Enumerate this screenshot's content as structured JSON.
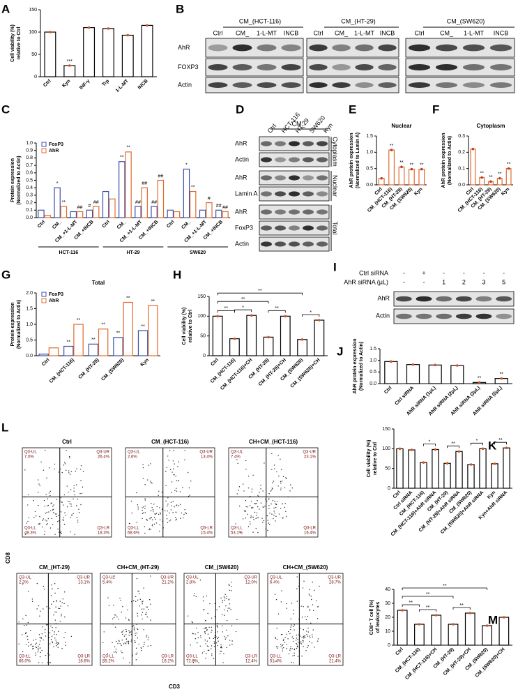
{
  "chart_data": [
    {
      "panel": "A",
      "type": "bar",
      "y_label": [
        "Cell viability (%)",
        "relative to Ctrl"
      ],
      "categories": [
        "Ctrl",
        "Kyn",
        "INF-γ",
        "Trp",
        "1-L-MT",
        "INCB"
      ],
      "values": [
        100,
        25,
        110,
        108,
        93,
        115
      ],
      "color": "#000000",
      "point_color": "#d9531e",
      "annotations": [
        null,
        "***",
        null,
        null,
        null,
        null
      ],
      "ylim": [
        0,
        150
      ],
      "yticks": [
        0,
        50,
        100,
        150
      ]
    },
    {
      "panel": "C",
      "type": "bar",
      "y_label": [
        "Protein expression",
        "(Normalized to Actin)"
      ],
      "categories": [
        "Ctrl",
        "CM_",
        "CM_+1-L-MT",
        "CM_+INCB",
        "Ctrl",
        "CM_",
        "CM_+1-L-MT",
        "CM_+INCB",
        "Ctrl",
        "CM_",
        "CM_+1-L-MT",
        "CM_+INCB"
      ],
      "groups": [
        "HCT-116",
        "HT-29",
        "SW620"
      ],
      "series": [
        {
          "name": "FoxP3",
          "color": "#3b4fa8",
          "values": [
            0.1,
            0.4,
            0.08,
            0.1,
            0.35,
            0.75,
            0.15,
            0.15,
            0.1,
            0.65,
            0.1,
            0.1
          ],
          "annotations": [
            null,
            "*",
            null,
            "#",
            null,
            "**",
            "##",
            "##",
            null,
            "*",
            null,
            "##"
          ]
        },
        {
          "name": "AhR",
          "color": "#e06a2c",
          "values": [
            0.03,
            0.15,
            0.08,
            0.15,
            0.25,
            0.88,
            0.4,
            0.5,
            0.08,
            0.35,
            0.2,
            0.08
          ],
          "annotations": [
            null,
            "**",
            "##",
            "##",
            null,
            "**",
            "##",
            "##",
            null,
            "**",
            "#",
            "##"
          ]
        }
      ],
      "ylim": [
        0,
        1.0
      ],
      "yticks": [
        {
          "value": 0,
          "label": "0.0"
        },
        0.1,
        0.2,
        0.3,
        0.4,
        0.5,
        0.6,
        0.7,
        0.8,
        0.9,
        {
          "value": 1,
          "label": "1.0"
        }
      ],
      "legend": "upper left"
    },
    {
      "panel": "E",
      "type": "bar",
      "title": "Nuclear",
      "y_label": [
        "AhR protein expression",
        "(Normalized to Lamin A)"
      ],
      "categories": [
        "Ctrl",
        "CM_(HCT-116)",
        "CM_(HT-29)",
        "CM_(SW620)",
        "Kyn"
      ],
      "values": [
        0.2,
        1.07,
        0.55,
        0.48,
        0.48
      ],
      "color": "#e06a2c",
      "point_color": "#c0392b",
      "annotations": [
        null,
        "**",
        "**",
        "**",
        "**"
      ],
      "ylim": [
        0,
        1.5
      ],
      "yticks": [
        {
          "value": 0,
          "label": "0.0"
        },
        0.5,
        {
          "value": 1,
          "label": "1.0"
        },
        1.5
      ]
    },
    {
      "panel": "F",
      "type": "bar",
      "title": "Cytoplasm",
      "y_label": [
        "AhR protein expression",
        "(Normalized to Actin)"
      ],
      "categories": [
        "Ctrl",
        "CM_(HCT-116)",
        "CM_(HT-29)",
        "CM_(SW620)",
        "Kyn"
      ],
      "values": [
        0.22,
        0.045,
        0.02,
        0.04,
        0.1
      ],
      "color": "#e06a2c",
      "point_color": "#c0392b",
      "annotations": [
        null,
        "**",
        "**",
        "**",
        "**"
      ],
      "ylim": [
        0,
        0.3
      ],
      "yticks": [
        {
          "value": 0,
          "label": "0.0"
        },
        0.1,
        0.2,
        0.3
      ]
    },
    {
      "panel": "G",
      "type": "bar",
      "title": "Total",
      "y_label": [
        "Protein expression",
        "(Normalized to Actin)"
      ],
      "categories": [
        "Ctrl",
        "CM_(HCT-116)",
        "CM_(HT-29)",
        "CM_(SW620)",
        "Kyn"
      ],
      "series": [
        {
          "name": "FoxP3",
          "color": "#3b4fa8",
          "values": [
            0.05,
            0.3,
            0.37,
            0.58,
            0.8
          ],
          "annotations": [
            null,
            "**",
            "**",
            "**",
            "**"
          ]
        },
        {
          "name": "AhR",
          "color": "#e06a2c",
          "values": [
            0.25,
            1.0,
            0.85,
            1.7,
            1.6
          ],
          "annotations": [
            null,
            "**",
            "**",
            "**",
            "**"
          ]
        }
      ],
      "ylim": [
        0,
        2.0
      ],
      "yticks": [
        {
          "value": 0,
          "label": "0.0"
        },
        0.5,
        {
          "value": 1,
          "label": "1.0"
        },
        1.5,
        {
          "value": 2,
          "label": "2.0"
        }
      ],
      "legend": "upper left"
    },
    {
      "panel": "H",
      "type": "bar",
      "y_label": [
        "Cell viability (%)",
        "relative to Ctrl"
      ],
      "categories": [
        "Ctrl",
        "CM_(HCT-116)",
        "CM_(HCT-116)+CH",
        "CM_(HT-29)",
        "CM_(HT-29)+CH",
        "CM_(SW620)",
        "CM_(SW620)+CH"
      ],
      "values": [
        100,
        43,
        102,
        47,
        100,
        41,
        90
      ],
      "color": "#000000",
      "point_color": "#d9531e",
      "ylim": [
        0,
        150
      ],
      "yticks": [
        0,
        50,
        100,
        150
      ],
      "brackets": [
        {
          "from": "Ctrl",
          "to": "CM_(HCT-116)",
          "label": "**"
        },
        {
          "from": "CM_(HCT-116)",
          "to": "CM_(HCT-116)+CH",
          "label": "*"
        },
        {
          "from": "Ctrl",
          "to": "CM_(HT-29)",
          "label": "**"
        },
        {
          "from": "CM_(HT-29)",
          "to": "CM_(HT-29)+CH",
          "label": "**"
        },
        {
          "from": "Ctrl",
          "to": "CM_(SW620)",
          "label": "**"
        },
        {
          "from": "CM_(SW620)",
          "to": "CM_(SW620)+CH",
          "label": "*"
        }
      ]
    },
    {
      "panel": "J",
      "type": "bar",
      "y_label": [
        "AhR protein expression",
        "(Normalized to Actin)"
      ],
      "categories": [
        "Ctrl",
        "Ctrl siRNA",
        "AhR siRNA (1μL)",
        "AhR siRNA (2μL)",
        "AhR siRNA (3μL)",
        "AhR siRNA (5μL)"
      ],
      "values": [
        0.95,
        0.82,
        0.8,
        0.78,
        0.05,
        0.22
      ],
      "color": "#000000",
      "point_color": "#d9531e",
      "annotations": [
        null,
        null,
        null,
        null,
        "**",
        "**"
      ],
      "ylim": [
        0,
        1.5
      ],
      "yticks": [
        {
          "value": 0,
          "label": "0.0"
        },
        0.5,
        {
          "value": 1,
          "label": "1.0"
        },
        1.5
      ]
    },
    {
      "panel": "K",
      "type": "bar",
      "y_label": [
        "Cell viability (%)",
        "relative to Ctrl"
      ],
      "categories": [
        "Ctrl",
        "Ctrl siRNA",
        "CM_(HCT-116)",
        "CM_(HCT-116)+AhR siRNA",
        "CM_(HT-29)",
        "CM_(HT-29)+AhR siRNA",
        "CM_(SW620)",
        "CM_(SW620)+AhR siRNA",
        "Kyn",
        "Kyn+AhR siRNA"
      ],
      "values": [
        100,
        97,
        65,
        98,
        63,
        93,
        60,
        100,
        62,
        102
      ],
      "color": "#000000",
      "point_color": "#d9531e",
      "ylim": [
        0,
        150
      ],
      "yticks": [
        0,
        50,
        100,
        150
      ],
      "brackets": [
        {
          "from": "CM_(HCT-116)",
          "to": "CM_(HCT-116)+AhR siRNA",
          "label": "*"
        },
        {
          "from": "CM_(HT-29)",
          "to": "CM_(HT-29)+AhR siRNA",
          "label": "**"
        },
        {
          "from": "CM_(SW620)",
          "to": "CM_(SW620)+AhR siRNA",
          "label": "*"
        },
        {
          "from": "Kyn",
          "to": "Kyn+AhR siRNA",
          "label": "**"
        }
      ]
    },
    {
      "panel": "M",
      "type": "bar",
      "y_label": [
        "CD8⁺ T cell (%)",
        "of leukocytes"
      ],
      "categories": [
        "Ctrl",
        "CM_(HCT-116)",
        "CM_(HCT-116)+CH",
        "CM_(HT-29)",
        "CM_(HT-29)+CH",
        "CM_(SW620)",
        "CM_(SW620)+CH"
      ],
      "values": [
        25,
        15,
        21.5,
        15,
        23,
        14,
        20
      ],
      "color": "#000000",
      "point_color": "#d9531e",
      "ylim": [
        0,
        40
      ],
      "yticks": [
        0,
        10,
        20,
        30,
        40
      ],
      "brackets": [
        {
          "from": "Ctrl",
          "to": "CM_(HCT-116)",
          "label": "**"
        },
        {
          "from": "CM_(HCT-116)",
          "to": "CM_(HCT-116)+CH",
          "label": "**"
        },
        {
          "from": "Ctrl",
          "to": "CM_(HT-29)",
          "label": "**"
        },
        {
          "from": "CM_(HT-29)",
          "to": "CM_(HT-29)+CH",
          "label": "**"
        },
        {
          "from": "Ctrl",
          "to": "CM_(SW620)",
          "label": "**"
        }
      ]
    }
  ],
  "blots_B": {
    "panel": "B",
    "rows": [
      "AhR",
      "FOXP3",
      "Actin"
    ],
    "blots": [
      {
        "title": "CM_(HCT-116)",
        "lanes": [
          "Ctrl",
          "CM_",
          "1-L-MT",
          "INCB"
        ]
      },
      {
        "title": "CM_(HT-29)",
        "lanes": [
          "Ctrl",
          "CM_",
          "1-L-MT",
          "INCB"
        ]
      },
      {
        "title": "CM_(SW620)",
        "lanes": [
          "Ctrl",
          "CM_",
          "1-L-MT",
          "INCB"
        ]
      }
    ]
  },
  "blots_D": {
    "panel": "D",
    "header": "CM_",
    "lanes": [
      "Ctrl",
      "HCT-116",
      "HT-29",
      "SW620",
      "Kyn"
    ],
    "sections": [
      {
        "name": "Cytoplasm",
        "rows": [
          "AhR",
          "Actin"
        ]
      },
      {
        "name": "Nuclear",
        "rows": [
          "AhR",
          "Lamin A"
        ]
      },
      {
        "name": "Total",
        "rows": [
          "AhR",
          "FoxP3",
          "Actin"
        ]
      }
    ]
  },
  "blots_I": {
    "panel": "I",
    "conditions": [
      {
        "name": "Ctrl siRNA",
        "values": [
          "-",
          "+",
          "-",
          "-",
          "-",
          "-"
        ]
      },
      {
        "name": "AhR siRNA (μL)",
        "values": [
          "-",
          "-",
          "1",
          "2",
          "3",
          "5"
        ]
      }
    ],
    "rows": [
      "AhR",
      "Actin"
    ]
  },
  "flow_L": {
    "panel": "L",
    "x_label": "CD3",
    "y_label": "CD8",
    "plots": [
      {
        "title": "Ctrl",
        "quadrants": [
          {
            "gate": "Q3-UL",
            "percent": "7.0%"
          },
          {
            "gate": "Q3-UR",
            "percent": "26.4%"
          },
          {
            "gate": "Q3-LL",
            "percent": "48.3%"
          },
          {
            "gate": "Q3-LR",
            "percent": "18.3%"
          }
        ]
      },
      {
        "title": "CM_(HCT-116)",
        "quadrants": [
          {
            "gate": "Q3-UL",
            "percent": "2.6%"
          },
          {
            "gate": "Q3-UR",
            "percent": "13.4%"
          },
          {
            "gate": "Q3-LL",
            "percent": "68.6%"
          },
          {
            "gate": "Q3-LR",
            "percent": "15.4%"
          }
        ]
      },
      {
        "title": "CH+CM_(HCT-116)",
        "quadrants": [
          {
            "gate": "Q3-UL",
            "percent": "7.4%"
          },
          {
            "gate": "Q3-UR",
            "percent": "23.1%"
          },
          {
            "gate": "Q3-LL",
            "percent": "53.1%"
          },
          {
            "gate": "Q3-LR",
            "percent": "16.4%"
          }
        ]
      },
      {
        "title": "CM_(HT-29)",
        "quadrants": [
          {
            "gate": "Q3-UL",
            "percent": "2.3%"
          },
          {
            "gate": "Q3-UR",
            "percent": "13.1%"
          },
          {
            "gate": "Q3-LL",
            "percent": "66.0%"
          },
          {
            "gate": "Q3-LR",
            "percent": "18.6%"
          }
        ]
      },
      {
        "title": "CH+CM_(HT-29)",
        "quadrants": [
          {
            "gate": "Q3-UL",
            "percent": "5.4%"
          },
          {
            "gate": "Q3-UR",
            "percent": "21.2%"
          },
          {
            "gate": "Q3-LL",
            "percent": "55.2%"
          },
          {
            "gate": "Q3-LR",
            "percent": "18.2%"
          }
        ]
      },
      {
        "title": "CM_(SW620)",
        "quadrants": [
          {
            "gate": "Q3-UL",
            "percent": "2.8%"
          },
          {
            "gate": "Q3-UR",
            "percent": "12.0%"
          },
          {
            "gate": "Q3-LL",
            "percent": "72.8%"
          },
          {
            "gate": "Q3-LR",
            "percent": "12.4%"
          }
        ]
      },
      {
        "title": "CH+CM_(SW620)",
        "quadrants": [
          {
            "gate": "Q3-UL",
            "percent": "6.4%"
          },
          {
            "gate": "Q3-UR",
            "percent": "28.7%"
          },
          {
            "gate": "Q3-LL",
            "percent": "51.4%"
          },
          {
            "gate": "Q3-LR",
            "percent": "21.4%"
          }
        ]
      }
    ]
  }
}
